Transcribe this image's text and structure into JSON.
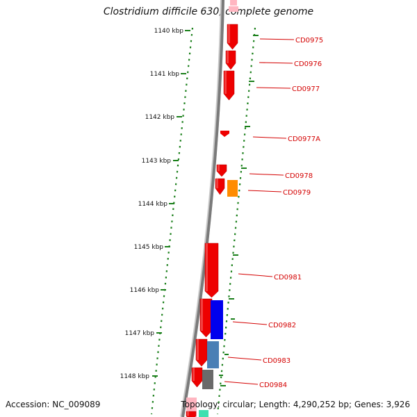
{
  "title": "Clostridium difficile 630, complete genome",
  "accession": "Accession: NC_009089",
  "info": "Topology: circular; Length: 4,290,252 bp; Genes: 3,926",
  "colors": {
    "backbone": "#7a7a7a",
    "tick": "#1a7f1a",
    "gene_label": "#d40000",
    "cds_forward": "#ee0000",
    "orange": "#ff8c00",
    "blue": "#0000ee",
    "steelblue": "#4a7fb5",
    "grey": "#6a6a6a",
    "pink": "#ffb6c1",
    "teal": "#40e0b0"
  },
  "kbp_labels": [
    "1140 kbp",
    "1141 kbp",
    "1142 kbp",
    "1143 kbp",
    "1144 kbp",
    "1145 kbp",
    "1146 kbp",
    "1147 kbp",
    "1148 kbp"
  ],
  "gene_labels": [
    "CD0975",
    "CD0976",
    "CD0977",
    "CD0977A",
    "CD0978",
    "CD0979",
    "CD0981",
    "CD0982",
    "CD0983",
    "CD0984"
  ]
}
